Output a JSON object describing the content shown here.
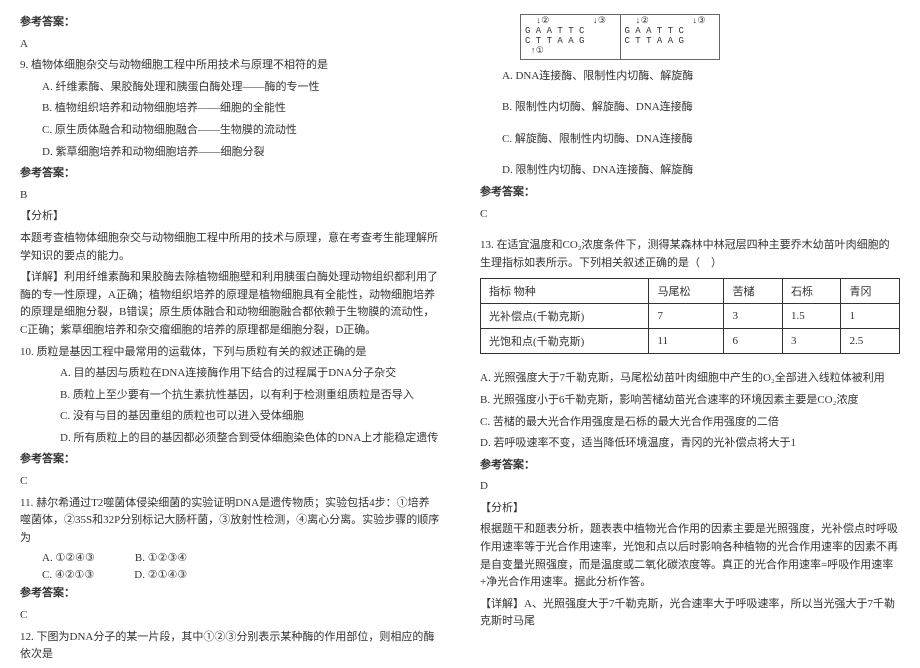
{
  "left": {
    "ansLabel": "参考答案：",
    "ansA": "A",
    "q9": "9. 植物体细胞杂交与动物细胞工程中所用技术与原理不相符的是",
    "q9A": "A. 纤维素酶、果胶酶处理和胰蛋白酶处理——酶的专一性",
    "q9B": "B. 植物组织培养和动物细胞培养——细胞的全能性",
    "q9C": "C. 原生质体融合和动物细胞融合——生物膜的流动性",
    "q9D": "D. 紫草细胞培养和动物细胞培养——细胞分裂",
    "ansB": "B",
    "analysisLabel": "【分析】",
    "q9analysis": "本题考查植物体细胞杂交与动物细胞工程中所用的技术与原理，意在考查考生能理解所学知识的要点的能力。",
    "detailLabel": "【详解】",
    "q9detail": "利用纤维素酶和果胶酶去除植物细胞壁和利用胰蛋白酶处理动物组织都利用了酶的专一性原理，A正确；植物组织培养的原理是植物细胞具有全能性，动物细胞培养的原理是细胞分裂，B错误；原生质体融合和动物细胞融合都依赖于生物膜的流动性，C正确；紫草细胞培养和杂交瘤细胞的培养的原理都是细胞分裂，D正确。",
    "q10": "10. 质粒是基因工程中最常用的运载体，下列与质粒有关的叙述正确的是",
    "q10A": "A. 目的基因与质粒在DNA连接酶作用下结合的过程属于DNA分子杂交",
    "q10B": "B. 质粒上至少要有一个抗生素抗性基因，以有利于检测重组质粒是否导入",
    "q10C": "C. 没有与目的基因重组的质粒也可以进入受体细胞",
    "q10D": "D. 所有质粒上的目的基因都必须整合到受体细胞染色体的DNA上才能稳定遗传",
    "ansC": "C",
    "q11": "11. 赫尔希通过T2噬菌体侵染细菌的实验证明DNA是遗传物质；实验包括4步：①培养噬菌体，②35S和32P分别标记大肠杆菌，③放射性检测，④离心分离。实验步骤的顺序为",
    "q11opts": {
      "a": "A. ①②④③",
      "b": "B. ①②③④",
      "c": "C. ④②①③",
      "d": "D. ②①④③"
    },
    "ansC2": "C",
    "q12": "12. 下图为DNA分子的某一片段，其中①②③分别表示某种酶的作用部位，则相应的酶依次是"
  },
  "right": {
    "diag": {
      "l1": "  ↓②        ↓③",
      "l2a": "G A A T T C",
      "l2b": "G A A T T C",
      "l3a": "C T T A A G",
      "l3b": "C T T A A G",
      "arrow": " ↑①"
    },
    "q12A": "A. DNA连接酶、限制性内切酶、解旋酶",
    "q12B": "B. 限制性内切酶、解旋酶、DNA连接酶",
    "q12C": "C. 解旋酶、限制性内切酶、DNA连接酶",
    "q12D": "D. 限制性内切酶、DNA连接酶、解旋酶",
    "ansLabel": "参考答案：",
    "ansC": "C",
    "q13": "13. 在适宜温度和CO₂浓度条件下，测得某森林中林冠层四种主要乔木幼苗叶肉细胞的生理指标如表所示。下列相关叙述正确的是（　）",
    "table": {
      "headers": [
        "指标     物种",
        "马尾松",
        "苦槠",
        "石栎",
        "青冈"
      ],
      "rows": [
        [
          "光补偿点(千勒克斯)",
          "7",
          "3",
          "1.5",
          "1"
        ],
        [
          "光饱和点(千勒克斯)",
          "11",
          "6",
          "3",
          "2.5"
        ]
      ]
    },
    "q13A": "A. 光照强度大于7千勒克斯，马尾松幼苗叶肉细胞中产生的O₂全部进入线粒体被利用",
    "q13B": "B. 光照强度小于6千勒克斯，影响苦槠幼苗光合速率的环境因素主要是CO₂浓度",
    "q13C": "C. 苦槠的最大光合作用强度是石栎的最大光合作用强度的二倍",
    "q13D": "D. 若呼吸速率不变，适当降低环境温度，青冈的光补偿点将大于1",
    "ansD": "D",
    "analysisLabel": "【分析】",
    "q13analysis": "根据题干和题表分析，题表表中植物光合作用的因素主要是光照强度，光补偿点时呼吸作用速率等于光合作用速率，光饱和点以后时影响各种植物的光合作用速率的因素不再是自变量光照强度，而是温度或二氧化碳浓度等。真正的光合作用速率=呼吸作用速率+净光合作用速率。据此分析作答。",
    "detailLabel": "【详解】",
    "q13detail": "A、光照强度大于7千勒克斯，光合速率大于呼吸速率，所以当光强大于7千勒克斯时马尾"
  }
}
